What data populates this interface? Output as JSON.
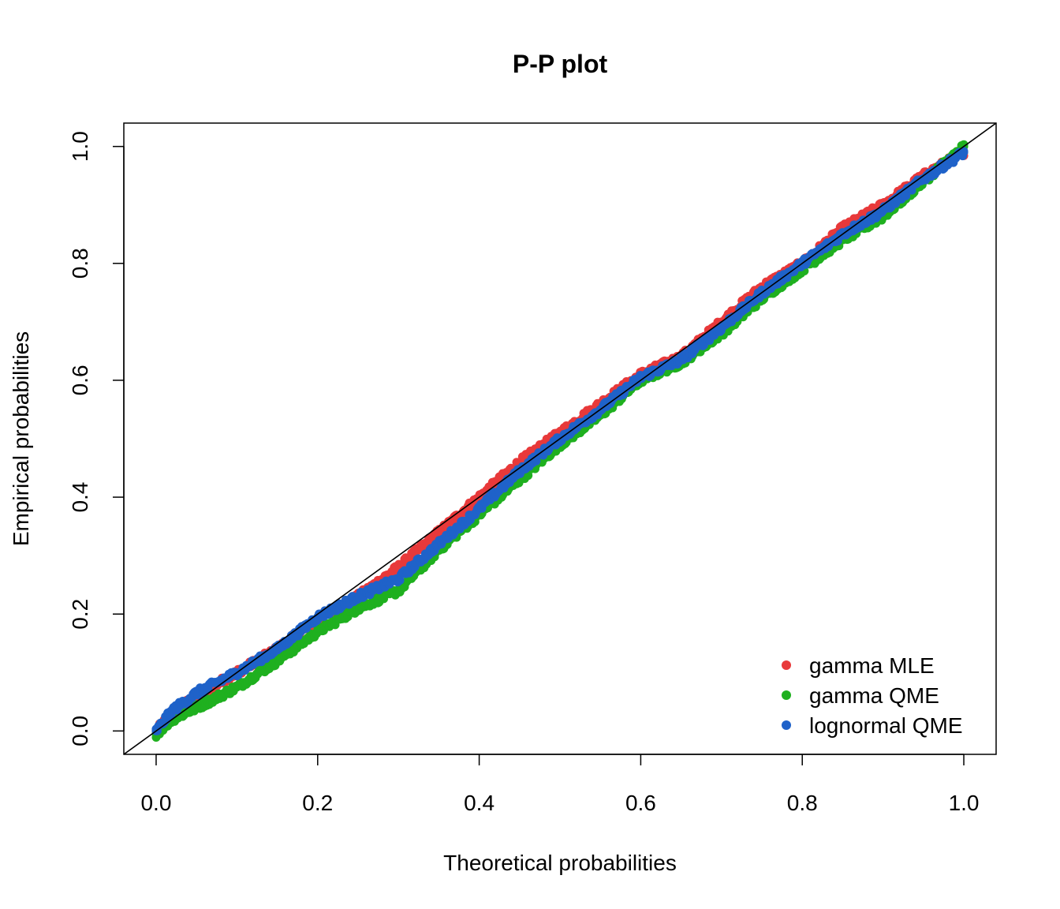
{
  "chart_data": {
    "type": "scatter",
    "title": "P-P plot",
    "xlabel": "Theoretical probabilities",
    "ylabel": "Empirical probabilities",
    "xlim": [
      -0.04,
      1.04
    ],
    "ylim": [
      -0.04,
      1.04
    ],
    "x_ticks": [
      "0.0",
      "0.2",
      "0.4",
      "0.6",
      "0.8",
      "1.0"
    ],
    "y_ticks": [
      "0.0",
      "0.2",
      "0.4",
      "0.6",
      "0.8",
      "1.0"
    ],
    "grid": false,
    "legend_position": "bottom-right",
    "reference_line": {
      "from": [
        -0.04,
        -0.04
      ],
      "to": [
        1.04,
        1.04
      ],
      "color": "#000000"
    },
    "series": [
      {
        "name": "gamma MLE",
        "color": "#e8393a",
        "points": [
          [
            0.0,
            0.0
          ],
          [
            0.02,
            0.03
          ],
          [
            0.05,
            0.06
          ],
          [
            0.1,
            0.1
          ],
          [
            0.15,
            0.14
          ],
          [
            0.2,
            0.19
          ],
          [
            0.25,
            0.23
          ],
          [
            0.3,
            0.28
          ],
          [
            0.35,
            0.34
          ],
          [
            0.4,
            0.4
          ],
          [
            0.45,
            0.46
          ],
          [
            0.5,
            0.51
          ],
          [
            0.55,
            0.56
          ],
          [
            0.6,
            0.61
          ],
          [
            0.65,
            0.64
          ],
          [
            0.7,
            0.7
          ],
          [
            0.75,
            0.76
          ],
          [
            0.8,
            0.8
          ],
          [
            0.85,
            0.86
          ],
          [
            0.9,
            0.9
          ],
          [
            0.95,
            0.95
          ],
          [
            1.0,
            0.99
          ]
        ]
      },
      {
        "name": "gamma QME",
        "color": "#1fb01f",
        "points": [
          [
            0.0,
            -0.005
          ],
          [
            0.02,
            0.02
          ],
          [
            0.05,
            0.04
          ],
          [
            0.1,
            0.075
          ],
          [
            0.15,
            0.12
          ],
          [
            0.2,
            0.17
          ],
          [
            0.25,
            0.21
          ],
          [
            0.3,
            0.24
          ],
          [
            0.35,
            0.31
          ],
          [
            0.4,
            0.37
          ],
          [
            0.45,
            0.43
          ],
          [
            0.5,
            0.49
          ],
          [
            0.55,
            0.54
          ],
          [
            0.6,
            0.6
          ],
          [
            0.65,
            0.63
          ],
          [
            0.7,
            0.68
          ],
          [
            0.75,
            0.74
          ],
          [
            0.8,
            0.79
          ],
          [
            0.85,
            0.84
          ],
          [
            0.9,
            0.88
          ],
          [
            0.95,
            0.94
          ],
          [
            1.0,
            1.0
          ]
        ]
      },
      {
        "name": "lognormal QME",
        "color": "#1f62c9",
        "points": [
          [
            0.0,
            0.0
          ],
          [
            0.02,
            0.035
          ],
          [
            0.05,
            0.065
          ],
          [
            0.1,
            0.1
          ],
          [
            0.15,
            0.14
          ],
          [
            0.2,
            0.195
          ],
          [
            0.25,
            0.23
          ],
          [
            0.3,
            0.26
          ],
          [
            0.35,
            0.32
          ],
          [
            0.4,
            0.38
          ],
          [
            0.45,
            0.445
          ],
          [
            0.5,
            0.5
          ],
          [
            0.55,
            0.55
          ],
          [
            0.6,
            0.605
          ],
          [
            0.65,
            0.635
          ],
          [
            0.7,
            0.69
          ],
          [
            0.75,
            0.75
          ],
          [
            0.8,
            0.8
          ],
          [
            0.85,
            0.85
          ],
          [
            0.9,
            0.89
          ],
          [
            0.95,
            0.945
          ],
          [
            1.0,
            0.99
          ]
        ]
      }
    ]
  }
}
